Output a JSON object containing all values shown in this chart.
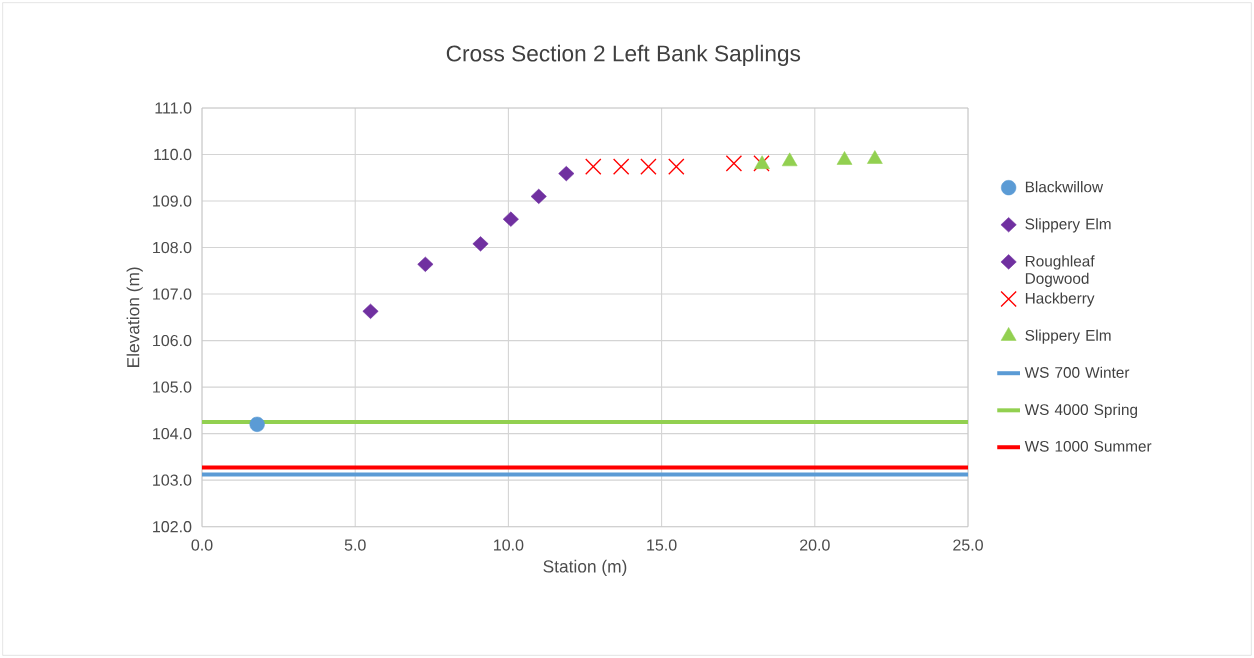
{
  "chart_data": {
    "type": "scatter",
    "title": "Cross Section 2 Left Bank Saplings",
    "xlabel": "Station (m)",
    "ylabel": "Elevation (m)",
    "xlim": [
      0,
      25
    ],
    "ylim": [
      102,
      111
    ],
    "xticks": [
      {
        "value": 0,
        "label": "0.0"
      },
      {
        "value": 5,
        "label": "5.0"
      },
      {
        "value": 10,
        "label": "10.0"
      },
      {
        "value": 15,
        "label": "15.0"
      },
      {
        "value": 20,
        "label": "20.0"
      },
      {
        "value": 25,
        "label": "25.0"
      }
    ],
    "yticks": [
      {
        "value": 102,
        "label": "102.0"
      },
      {
        "value": 103,
        "label": "103.0"
      },
      {
        "value": 104,
        "label": "104.0"
      },
      {
        "value": 105,
        "label": "105.0"
      },
      {
        "value": 106,
        "label": "106.0"
      },
      {
        "value": 107,
        "label": "107.0"
      },
      {
        "value": 108,
        "label": "108.0"
      },
      {
        "value": 109,
        "label": "109.0"
      },
      {
        "value": 110,
        "label": "110.0"
      },
      {
        "value": 111,
        "label": "111.0"
      }
    ],
    "grid": true,
    "legend": "right",
    "series": [
      {
        "name": "Blackwillow",
        "color": "#5b9bd5",
        "marker": "circle",
        "x": [
          1.8
        ],
        "values": [
          104.2
        ]
      },
      {
        "name": "Slippery Elm",
        "color": "#7030a0",
        "marker": "diamond",
        "x": [
          5.5,
          7.29,
          9.09,
          10.08
        ],
        "values": [
          106.63,
          107.64,
          108.08,
          108.61
        ]
      },
      {
        "name": "Roughleaf Dogwood",
        "color": "#7030a0",
        "marker": "diamond",
        "x": [
          10.99,
          11.89
        ],
        "values": [
          109.1,
          109.59
        ]
      },
      {
        "name": "Hackberry",
        "color": "#ff0000",
        "marker": "cross",
        "x": [
          12.77,
          13.68,
          14.57,
          15.48,
          17.36,
          18.26
        ],
        "values": [
          109.74,
          109.74,
          109.74,
          109.74,
          109.81,
          109.81
        ]
      },
      {
        "name": "Slippery Elm",
        "color": "#92d050",
        "marker": "triangle",
        "x": [
          18.28,
          19.18,
          20.97,
          21.96
        ],
        "values": [
          109.79,
          109.85,
          109.88,
          109.9
        ]
      },
      {
        "name": "WS 700 Winter",
        "type": "line",
        "color": "#5b9bd5",
        "marker": "none",
        "x": [
          0,
          25
        ],
        "values": [
          103.12,
          103.12
        ]
      },
      {
        "name": "WS 4000 Spring",
        "type": "line",
        "color": "#92d050",
        "marker": "none",
        "x": [
          0,
          25
        ],
        "values": [
          104.25,
          104.25
        ]
      },
      {
        "name": "WS 1000 Summer",
        "type": "line",
        "color": "#ff0000",
        "marker": "none",
        "x": [
          0,
          25
        ],
        "values": [
          103.27,
          103.27
        ]
      }
    ]
  }
}
